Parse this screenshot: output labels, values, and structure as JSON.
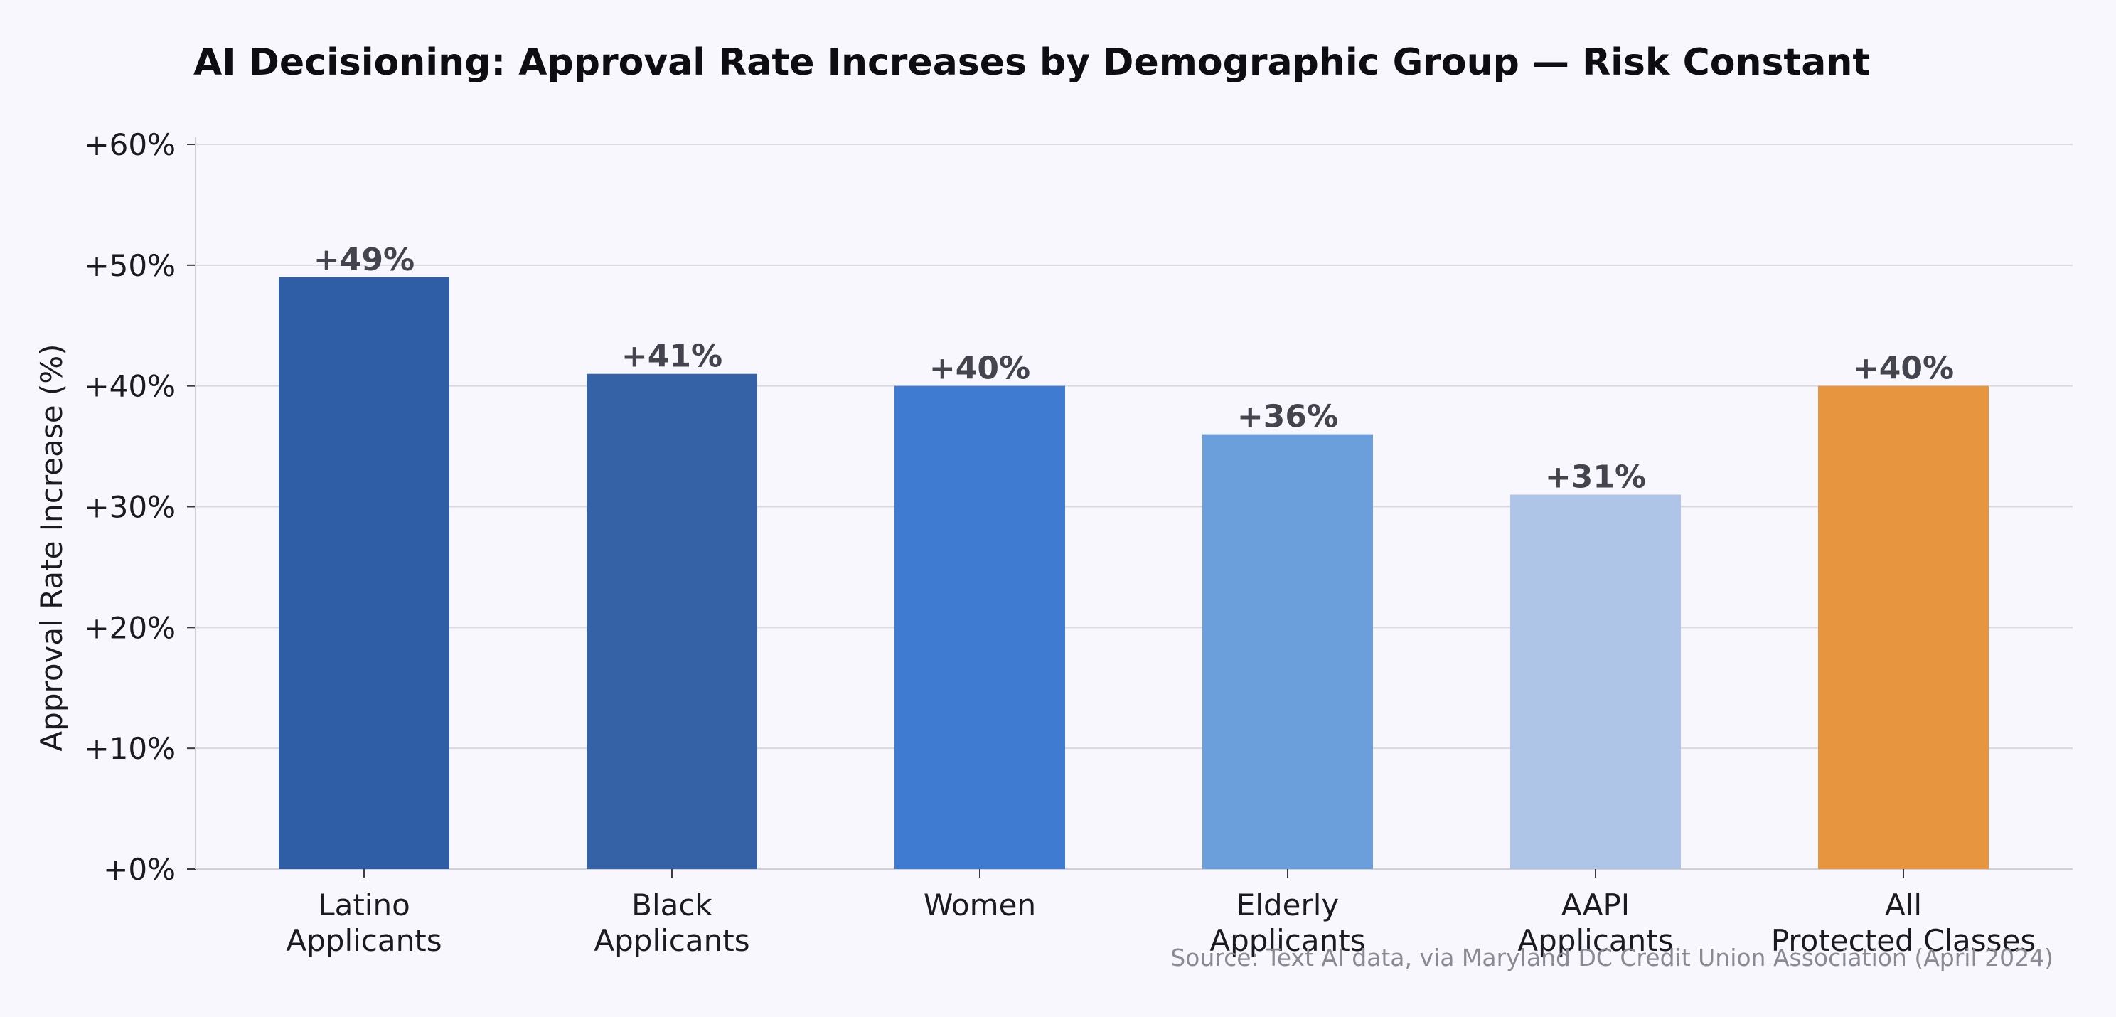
{
  "chart_data": {
    "type": "bar",
    "title": "AI Decisioning: Approval Rate Increases by Demographic Group — Risk Constant",
    "ylabel": "Approval Rate Increase (%)",
    "xlabel": "",
    "ylim": [
      0,
      60
    ],
    "yticks": [
      0,
      10,
      20,
      30,
      40,
      50,
      60
    ],
    "ytick_labels": [
      "+0%",
      "+10%",
      "+20%",
      "+30%",
      "+40%",
      "+50%",
      "+60%"
    ],
    "grid": true,
    "categories": [
      [
        "Latino",
        "Applicants"
      ],
      [
        "Black",
        "Applicants"
      ],
      [
        "Women"
      ],
      [
        "Elderly",
        "Applicants"
      ],
      [
        "AAPI",
        "Applicants"
      ],
      [
        "All",
        "Protected Classes"
      ]
    ],
    "values": [
      49,
      41,
      40,
      36,
      31,
      40
    ],
    "value_labels": [
      "+49%",
      "+41%",
      "+40%",
      "+36%",
      "+31%",
      "+40%"
    ],
    "colors": [
      "#2f5ea6",
      "#3562a6",
      "#3e7bd1",
      "#6a9fdc",
      "#afc5e7",
      "#e8953f"
    ],
    "source": "Source: Text AI data, via Maryland DC Credit Union Association (April 2024)"
  }
}
